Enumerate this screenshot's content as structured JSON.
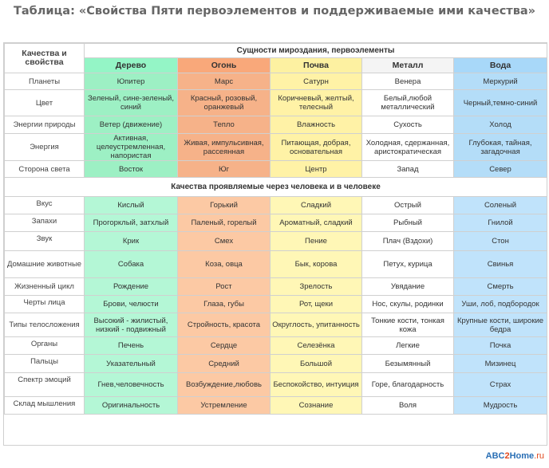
{
  "title": "Таблица: «Свойства Пяти первоэлементов и поддерживаемые ими качества»",
  "corner_label": "Качества и свойства",
  "group_header": "Сущности мироздания, первоэлементы",
  "elements": [
    "Дерево",
    "Огонь",
    "Почва",
    "Металл",
    "Вода"
  ],
  "rows_top": [
    {
      "label": "Планеты",
      "cells": [
        "Юпитер",
        "Марс",
        "Сатурн",
        "Венера",
        "Меркурий"
      ]
    },
    {
      "label": "Цвет",
      "cells": [
        "Зеленый, сине-зеленый, синий",
        "Красный, розовый, оранжевый",
        "Коричневый, желтый, телесный",
        "Белый,любой металлический",
        "Черный,темно-синий"
      ]
    },
    {
      "label": "Энергии природы",
      "cells": [
        "Ветер (движение)",
        "Тепло",
        "Влажность",
        "Сухость",
        "Холод"
      ]
    },
    {
      "label": "Энергия",
      "cells": [
        "Активная, целеустремленная, напористая",
        "Живая, импульсивная, рассеянная",
        "Питающая, добрая, основательная",
        "Холодная, сдержанная, аристократическая",
        "Глубокая, тайная, загадочная"
      ]
    },
    {
      "label": "Сторона света",
      "cells": [
        "Восток",
        "Юг",
        "Центр",
        "Запад",
        "Север"
      ]
    }
  ],
  "section_header": "Качества проявляемые через человека и в человеке",
  "rows_bottom": [
    {
      "label": "Вкус",
      "cells": [
        "Кислый",
        "Горький",
        "Сладкий",
        "Острый",
        "Соленый"
      ]
    },
    {
      "label": "Запахи",
      "cells": [
        "Прогорклый, затхлый",
        "Паленый, горелый",
        "Ароматный, сладкий",
        "Рыбный",
        "Гнилой"
      ]
    },
    {
      "label": "Звук",
      "cells": [
        "Крик",
        "Смех",
        "Пение",
        "Плач (Вздохи)",
        "Стон"
      ]
    },
    {
      "label": "Домашние животные",
      "cells": [
        "Собака",
        "Коза, овца",
        "Бык, корова",
        "Петух, курица",
        "Свинья"
      ]
    },
    {
      "label": "Жизненный цикл",
      "cells": [
        "Рождение",
        "Рост",
        "Зрелость",
        "Увядание",
        "Смерть"
      ]
    },
    {
      "label": "Черты лица",
      "cells": [
        "Брови, челюсти",
        "Глаза, губы",
        "Рот, щеки",
        "Нос,  скулы, родинки",
        "Уши, лоб, подбородок"
      ]
    },
    {
      "label": "Типы телосложения",
      "cells": [
        "Высокий - жилистый, низкий - подвижный",
        "Стройность, красота",
        "Округлость, упитанность",
        "Тонкие кости, тонкая кожа",
        "Крупные кости, широкие бедра"
      ]
    },
    {
      "label": "Органы",
      "cells": [
        "Печень",
        "Сердце",
        "Селезёнка",
        "Легкие",
        "Почка"
      ]
    },
    {
      "label": "Пальцы",
      "cells": [
        "Указательный",
        "Средний",
        "Большой",
        "Безымянный",
        "Мизинец"
      ]
    },
    {
      "label": "Спектр эмоций",
      "cells": [
        "Гнев,человечность",
        "Возбуждение,любовь",
        "Беспокойство, интуиция",
        "Горе, благодарность",
        "Страх"
      ]
    },
    {
      "label": "Склад мышления",
      "cells": [
        "Оригинальность",
        "Устремление",
        "Сознание",
        "Воля",
        "Мудрость"
      ]
    }
  ],
  "logo": {
    "p1": "ABC",
    "p2": "2",
    "p3": "Home",
    "p4": ".ru"
  }
}
